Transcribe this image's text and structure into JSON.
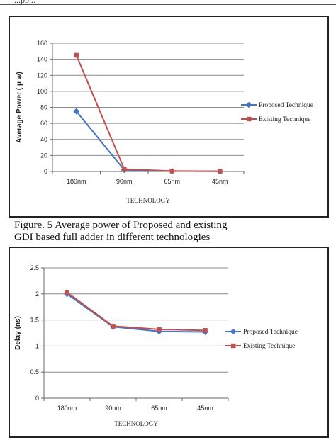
{
  "header": {
    "cut_text": "...pp..."
  },
  "captions": {
    "figure5_line1": "Figure. 5 Average power of Proposed and existing",
    "figure5_line2": "GDI based full adder in different technologies"
  },
  "colors": {
    "proposed": "#4472c4",
    "existing": "#c0504d",
    "grid": "#8c8c8c"
  },
  "chart_data": [
    {
      "type": "line",
      "categories": [
        "180nm",
        "90nm",
        "65nm",
        "45nm"
      ],
      "series": [
        {
          "name": "Proposed Technique",
          "values": [
            75,
            2,
            0.5,
            0.2
          ]
        },
        {
          "name": "Existing Technique",
          "values": [
            145,
            3,
            0.6,
            0.3
          ]
        }
      ],
      "title": "",
      "xlabel": "TECHNOLOGY",
      "ylabel": "Average Power ( μ w)",
      "ylim": [
        0,
        160
      ],
      "yticks": [
        "0",
        "20",
        "40",
        "60",
        "80",
        "100",
        "120",
        "140",
        "160"
      ],
      "grid": true,
      "legend": "right"
    },
    {
      "type": "line",
      "categories": [
        "180nm",
        "90nm",
        "65nm",
        "45nm"
      ],
      "series": [
        {
          "name": "Proposed Technique",
          "values": [
            2.0,
            1.37,
            1.28,
            1.27
          ]
        },
        {
          "name": "Existing Technique",
          "values": [
            2.03,
            1.38,
            1.32,
            1.3
          ]
        }
      ],
      "title": "",
      "xlabel": "TECHNOLOGY",
      "ylabel": "Delay (ns)",
      "ylim": [
        0,
        2.5
      ],
      "yticks": [
        "0",
        "0.5",
        "1",
        "1.5",
        "2",
        "2.5"
      ],
      "grid": true,
      "legend": "right"
    }
  ]
}
